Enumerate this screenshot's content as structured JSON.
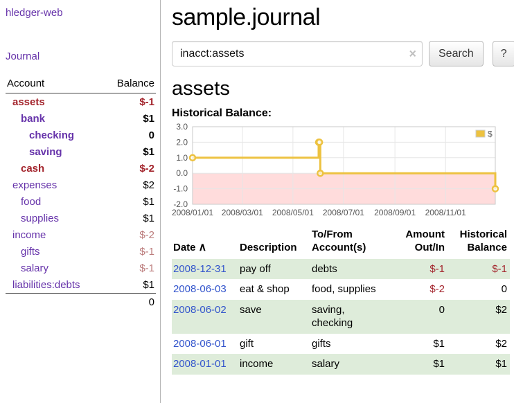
{
  "colors": {
    "link_purple": "#6633aa",
    "negative_red": "#a3242c",
    "negative_muted": "#bb7b7b",
    "date_link_blue": "#3355cc",
    "row_green": "#deecda",
    "chart_line_gold": "#edc240",
    "chart_negative_region": "#ffdcdc"
  },
  "sidebar": {
    "app_title": "hledger-web",
    "journal_label": "Journal",
    "accounts_table": {
      "col_account": "Account",
      "col_balance": "Balance",
      "rows": [
        {
          "name": "assets",
          "balance": "$-1",
          "level": 1,
          "bold": true,
          "name_neg": true,
          "bal_class": "neg"
        },
        {
          "name": "bank",
          "balance": "$1",
          "level": 2,
          "bold": true,
          "name_neg": false,
          "bal_class": ""
        },
        {
          "name": "checking",
          "balance": "0",
          "level": 3,
          "bold": true,
          "name_neg": false,
          "bal_class": ""
        },
        {
          "name": "saving",
          "balance": "$1",
          "level": 3,
          "bold": true,
          "name_neg": false,
          "bal_class": ""
        },
        {
          "name": "cash",
          "balance": "$-2",
          "level": 2,
          "bold": true,
          "name_neg": true,
          "bal_class": "neg"
        },
        {
          "name": "expenses",
          "balance": "$2",
          "level": 1,
          "bold": false,
          "name_neg": false,
          "bal_class": ""
        },
        {
          "name": "food",
          "balance": "$1",
          "level": 2,
          "bold": false,
          "name_neg": false,
          "bal_class": ""
        },
        {
          "name": "supplies",
          "balance": "$1",
          "level": 2,
          "bold": false,
          "name_neg": false,
          "bal_class": ""
        },
        {
          "name": "income",
          "balance": "$-2",
          "level": 1,
          "bold": false,
          "name_neg": false,
          "bal_class": "neg-muted"
        },
        {
          "name": "gifts",
          "balance": "$-1",
          "level": 2,
          "bold": false,
          "name_neg": false,
          "bal_class": "neg-muted"
        },
        {
          "name": "salary",
          "balance": "$-1",
          "level": 2,
          "bold": false,
          "name_neg": false,
          "bal_class": "neg-muted"
        },
        {
          "name": "liabilities:debts",
          "balance": "$1",
          "level": 1,
          "bold": false,
          "name_neg": false,
          "bal_class": ""
        }
      ],
      "total": "0"
    }
  },
  "main": {
    "title": "sample.journal",
    "search": {
      "value": "inacct:assets",
      "clear_icon": "×",
      "button_label": "Search",
      "help_label": "?"
    },
    "account_heading": "assets"
  },
  "chart_data": {
    "type": "line",
    "step": true,
    "title": "Historical Balance:",
    "series": [
      {
        "name": "$",
        "color": "#edc240",
        "points": [
          {
            "date": "2008-01-01",
            "x": 0,
            "y": 1
          },
          {
            "date": "2008-06-01",
            "x": 152,
            "y": 2
          },
          {
            "date": "2008-06-02",
            "x": 153,
            "y": 2
          },
          {
            "date": "2008-06-03",
            "x": 154,
            "y": 0
          },
          {
            "date": "2008-12-31",
            "x": 365,
            "y": -1
          }
        ]
      }
    ],
    "x_ticks": [
      {
        "value": 0,
        "label": "2008/01/01"
      },
      {
        "value": 60,
        "label": "2008/03/01"
      },
      {
        "value": 121,
        "label": "2008/05/01"
      },
      {
        "value": 182,
        "label": "2008/07/01"
      },
      {
        "value": 244,
        "label": "2008/09/01"
      },
      {
        "value": 305,
        "label": "2008/11/01"
      }
    ],
    "y_ticks": [
      {
        "value": 3,
        "label": "3.0"
      },
      {
        "value": 2,
        "label": "2.0"
      },
      {
        "value": 1,
        "label": "1.0"
      },
      {
        "value": 0,
        "label": "0.0"
      },
      {
        "value": -1,
        "label": "-1.0"
      },
      {
        "value": -2,
        "label": "-2.0"
      }
    ],
    "xlim": [
      0,
      365
    ],
    "ylim": [
      -2,
      3
    ],
    "grid": true,
    "legend_position": "top-right",
    "negative_region_color": "#ffdcdc"
  },
  "transactions": {
    "headers": {
      "date": "Date",
      "sort_icon": "∧",
      "description": "Description",
      "accounts_line1": "To/From",
      "accounts_line2": "Account(s)",
      "amount_line1": "Amount",
      "amount_line2": "Out/In",
      "balance_line1": "Historical",
      "balance_line2": "Balance"
    },
    "rows": [
      {
        "date": "2008-12-31",
        "description": "pay off",
        "accounts": "debts",
        "amount": "$-1",
        "amount_neg": true,
        "balance": "$-1",
        "balance_neg": true,
        "shaded": true
      },
      {
        "date": "2008-06-03",
        "description": "eat & shop",
        "accounts": "food, supplies",
        "amount": "$-2",
        "amount_neg": true,
        "balance": "0",
        "balance_neg": false,
        "shaded": false
      },
      {
        "date": "2008-06-02",
        "description": "save",
        "accounts": "saving, checking",
        "amount": "0",
        "amount_neg": false,
        "balance": "$2",
        "balance_neg": false,
        "shaded": true
      },
      {
        "date": "2008-06-01",
        "description": "gift",
        "accounts": "gifts",
        "amount": "$1",
        "amount_neg": false,
        "balance": "$2",
        "balance_neg": false,
        "shaded": false
      },
      {
        "date": "2008-01-01",
        "description": "income",
        "accounts": "salary",
        "amount": "$1",
        "amount_neg": false,
        "balance": "$1",
        "balance_neg": false,
        "shaded": true
      }
    ]
  }
}
